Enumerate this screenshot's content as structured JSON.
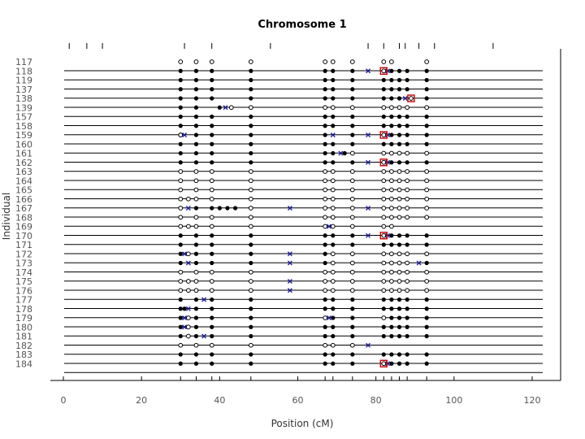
{
  "chart_data": {
    "type": "scatter",
    "title": "Chromosome 1",
    "xlabel": "Position (cM)",
    "ylabel": "Individual",
    "xlim": [
      0,
      128
    ],
    "xticks": [
      0,
      20,
      40,
      60,
      80,
      100,
      120
    ],
    "individuals": [
      "117",
      "118",
      "119",
      "137",
      "138",
      "139",
      "157",
      "158",
      "159",
      "160",
      "161",
      "162",
      "163",
      "164",
      "165",
      "166",
      "167",
      "168",
      "169",
      "170",
      "171",
      "172",
      "173",
      "174",
      "175",
      "176",
      "177",
      "178",
      "179",
      "180",
      "181",
      "182",
      "183",
      "184"
    ],
    "marker_positions": [
      1.5,
      6,
      10,
      31,
      38,
      53,
      78,
      82,
      86,
      87.5,
      91,
      95,
      110
    ],
    "marker_columns": [
      30,
      34,
      38,
      48,
      67,
      69,
      74,
      82,
      84,
      86,
      88,
      93
    ],
    "symbols": {
      "filled": "homozygous",
      "open": "heterozygous",
      "cross": "recombination"
    },
    "colors": {
      "filled": "#000000",
      "open": "#000000",
      "cross": "#1a1aa0",
      "highlight": "#cc0000",
      "line": "#000000"
    },
    "rows": [
      {
        "id": "117",
        "filled": [],
        "open": [
          30,
          34,
          38,
          48,
          67,
          69,
          74,
          82,
          84,
          93
        ],
        "cross": [],
        "highlight": []
      },
      {
        "id": "118",
        "filled": [
          30,
          34,
          38,
          48,
          67,
          69,
          74,
          84,
          86,
          88,
          93
        ],
        "open": [],
        "cross": [
          78,
          83
        ],
        "highlight": [
          82
        ]
      },
      {
        "id": "119",
        "filled": [
          30,
          34,
          38,
          48,
          67,
          69,
          74,
          82,
          84,
          86,
          88,
          93
        ],
        "open": [],
        "cross": [],
        "highlight": []
      },
      {
        "id": "137",
        "filled": [
          30,
          34,
          38,
          48,
          67,
          69,
          74,
          82,
          84,
          86,
          88,
          93
        ],
        "open": [],
        "cross": [],
        "highlight": []
      },
      {
        "id": "138",
        "filled": [
          30,
          34,
          38,
          48,
          67,
          69,
          74,
          82,
          84,
          86,
          93
        ],
        "open": [],
        "cross": [
          87.5
        ],
        "highlight": [
          89
        ]
      },
      {
        "id": "139",
        "filled": [
          30,
          34,
          40
        ],
        "open": [
          48,
          67,
          69,
          74,
          82,
          84,
          86,
          88,
          93,
          43
        ],
        "cross": [
          41.5
        ],
        "highlight": []
      },
      {
        "id": "157",
        "filled": [
          30,
          34,
          38,
          48,
          67,
          69,
          74,
          82,
          84,
          86,
          88,
          93
        ],
        "open": [],
        "cross": [],
        "highlight": []
      },
      {
        "id": "158",
        "filled": [
          30,
          34,
          38,
          48,
          67,
          69,
          74,
          82,
          84,
          86,
          88,
          93
        ],
        "open": [],
        "cross": [],
        "highlight": []
      },
      {
        "id": "159",
        "filled": [
          34,
          38,
          48,
          67,
          74,
          84,
          86,
          88,
          93
        ],
        "open": [
          30,
          30
        ],
        "cross": [
          31,
          69,
          78,
          83
        ],
        "highlight": [
          82
        ]
      },
      {
        "id": "160",
        "filled": [
          30,
          34,
          38,
          48,
          67,
          69,
          74,
          82,
          84,
          86,
          88,
          93
        ],
        "open": [],
        "cross": [],
        "highlight": []
      },
      {
        "id": "161",
        "filled": [
          30,
          34,
          38,
          48,
          67,
          69,
          72
        ],
        "open": [
          74,
          82,
          84,
          86,
          88,
          93
        ],
        "cross": [
          71
        ],
        "highlight": []
      },
      {
        "id": "162",
        "filled": [
          30,
          34,
          38,
          48,
          67,
          69,
          74,
          84,
          86,
          88,
          93
        ],
        "open": [],
        "cross": [
          78,
          83
        ],
        "highlight": [
          82
        ]
      },
      {
        "id": "163",
        "filled": [],
        "open": [
          30,
          34,
          38,
          48,
          67,
          69,
          74,
          82,
          84,
          86,
          88,
          93
        ],
        "cross": [],
        "highlight": []
      },
      {
        "id": "164",
        "filled": [],
        "open": [
          30,
          34,
          38,
          48,
          67,
          69,
          74,
          82,
          84,
          86,
          88,
          93
        ],
        "cross": [],
        "highlight": []
      },
      {
        "id": "165",
        "filled": [],
        "open": [
          30,
          34,
          38,
          48,
          67,
          69,
          74,
          82,
          84,
          86,
          88,
          93
        ],
        "cross": [],
        "highlight": []
      },
      {
        "id": "166",
        "filled": [],
        "open": [
          30,
          32,
          34,
          38,
          48,
          67,
          69,
          74,
          82,
          84,
          86,
          88,
          93
        ],
        "cross": [],
        "highlight": []
      },
      {
        "id": "167",
        "filled": [
          34,
          38,
          40,
          42,
          44
        ],
        "open": [
          30,
          48,
          67,
          69,
          74,
          82,
          84,
          86,
          88,
          93
        ],
        "cross": [
          32,
          58,
          78
        ],
        "highlight": []
      },
      {
        "id": "168",
        "filled": [],
        "open": [
          30,
          34,
          38,
          48,
          67,
          69,
          74,
          82,
          84,
          86,
          88,
          93
        ],
        "cross": [],
        "highlight": []
      },
      {
        "id": "169",
        "filled": [],
        "open": [
          30,
          32,
          34,
          38,
          48,
          67,
          69,
          74,
          82,
          84
        ],
        "cross": [
          68
        ],
        "highlight": []
      },
      {
        "id": "170",
        "filled": [
          30,
          34,
          38,
          48,
          67,
          69,
          74,
          84,
          86,
          88,
          93
        ],
        "open": [],
        "cross": [
          78,
          83
        ],
        "highlight": [
          82
        ]
      },
      {
        "id": "171",
        "filled": [
          30,
          34,
          38,
          48,
          67,
          69,
          74,
          82,
          84,
          86,
          88,
          93
        ],
        "open": [],
        "cross": [],
        "highlight": []
      },
      {
        "id": "172",
        "filled": [
          30,
          34,
          38,
          48,
          67
        ],
        "open": [
          32,
          69,
          74,
          82,
          84,
          86,
          88,
          93
        ],
        "cross": [
          31,
          58
        ],
        "highlight": []
      },
      {
        "id": "173",
        "filled": [
          30,
          34,
          38,
          48,
          67,
          93
        ],
        "open": [
          69,
          74,
          82,
          84,
          86,
          88
        ],
        "cross": [
          32,
          58,
          91
        ],
        "highlight": []
      },
      {
        "id": "174",
        "filled": [],
        "open": [
          30,
          34,
          38,
          48,
          67,
          69,
          74,
          82,
          84,
          86,
          88,
          93
        ],
        "cross": [],
        "highlight": []
      },
      {
        "id": "175",
        "filled": [],
        "open": [
          30,
          32,
          34,
          38,
          48,
          67,
          69,
          74,
          82,
          84,
          86,
          88,
          93
        ],
        "cross": [
          58
        ],
        "highlight": []
      },
      {
        "id": "176",
        "filled": [],
        "open": [
          30,
          32,
          34,
          38,
          48,
          67,
          69,
          74,
          82,
          84,
          86,
          88,
          93
        ],
        "cross": [
          58
        ],
        "highlight": []
      },
      {
        "id": "177",
        "filled": [
          30,
          34,
          38,
          48,
          67,
          69,
          74,
          82,
          84,
          86,
          88,
          93
        ],
        "open": [],
        "cross": [
          36
        ],
        "highlight": []
      },
      {
        "id": "178",
        "filled": [
          30,
          31,
          34,
          38,
          48,
          67,
          69,
          74,
          82,
          84,
          86,
          88,
          93
        ],
        "open": [],
        "cross": [
          32
        ],
        "highlight": []
      },
      {
        "id": "179",
        "filled": [
          30,
          34,
          38,
          48,
          69,
          74,
          84,
          86,
          88,
          93
        ],
        "open": [
          32,
          67,
          82
        ],
        "cross": [
          31,
          68
        ],
        "highlight": []
      },
      {
        "id": "180",
        "filled": [
          30,
          34,
          38,
          48,
          67,
          69,
          74,
          82,
          84,
          86,
          88,
          93
        ],
        "open": [
          32
        ],
        "cross": [
          31
        ],
        "highlight": []
      },
      {
        "id": "181",
        "filled": [
          30,
          34,
          38,
          48,
          67,
          69,
          74,
          82,
          84,
          86,
          88,
          93
        ],
        "open": [
          32
        ],
        "cross": [
          36
        ],
        "highlight": []
      },
      {
        "id": "182",
        "filled": [],
        "open": [
          30,
          34,
          38,
          48,
          67,
          69,
          74
        ],
        "cross": [
          78
        ],
        "highlight": []
      },
      {
        "id": "183",
        "filled": [
          30,
          34,
          38,
          48,
          67,
          69,
          74,
          82,
          84,
          86,
          88,
          93
        ],
        "open": [],
        "cross": [],
        "highlight": []
      },
      {
        "id": "184",
        "filled": [
          30,
          34,
          38,
          48,
          67,
          69,
          74,
          84,
          86,
          88,
          93
        ],
        "open": [],
        "cross": [
          83
        ],
        "highlight": [
          82
        ]
      }
    ]
  }
}
